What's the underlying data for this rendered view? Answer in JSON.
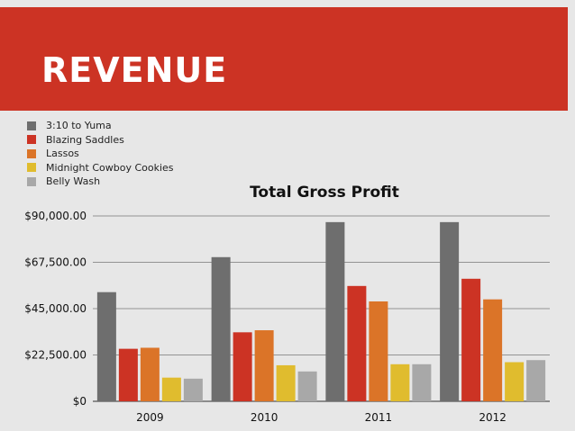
{
  "slide": {
    "heading": "REVENUE"
  },
  "colors": {
    "banner": "#cc3324",
    "background": "#e7e7e7",
    "series": [
      "#6e6e6e",
      "#cc3324",
      "#db7428",
      "#e0bc2e",
      "#a8a8a8"
    ]
  },
  "chart_data": {
    "type": "bar",
    "title": "Total Gross Profit",
    "xlabel": "",
    "ylabel": "",
    "categories": [
      "2009",
      "2010",
      "2011",
      "2012"
    ],
    "ylim": [
      0,
      90000
    ],
    "yticks": [
      0,
      22500,
      45000,
      67500,
      90000
    ],
    "ytick_labels": [
      "$0",
      "$22,500.00",
      "$45,000.00",
      "$67,500.00",
      "$90,000.00"
    ],
    "legend_position": "top-left",
    "grid": true,
    "series": [
      {
        "name": "3:10 to Yuma",
        "values": [
          53000,
          70000,
          87000,
          87000
        ]
      },
      {
        "name": "Blazing Saddles",
        "values": [
          25500,
          33500,
          56000,
          59500
        ]
      },
      {
        "name": "Lassos",
        "values": [
          26000,
          34500,
          48500,
          49500
        ]
      },
      {
        "name": "Midnight Cowboy Cookies",
        "values": [
          11500,
          17500,
          18000,
          19000
        ]
      },
      {
        "name": "Belly Wash",
        "values": [
          11000,
          14500,
          18000,
          20000
        ]
      }
    ]
  }
}
